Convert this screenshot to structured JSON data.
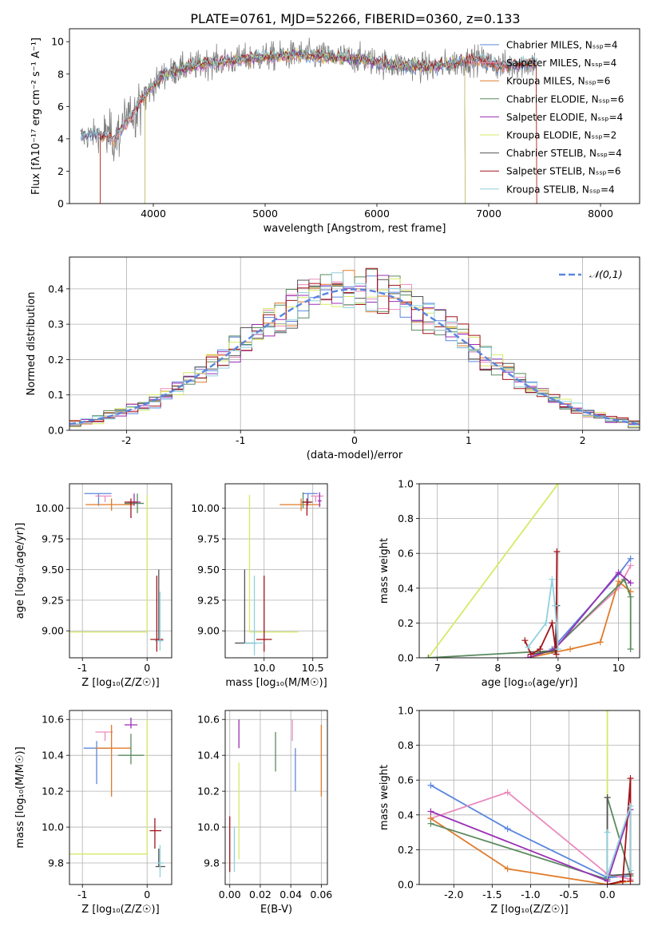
{
  "figure_title": "PLATE=0761, MJD=52266, FIBERID=0360, z=0.133",
  "colors": {
    "chabrier_miles": "#5b86dd",
    "salpeter_miles": "#e98bbd",
    "kroupa_miles": "#e07b2a",
    "chabrier_elodie": "#5a8a5e",
    "salpeter_elodie": "#9a2fb5",
    "kroupa_elodie": "#d6ea66",
    "chabrier_stelib": "#555555",
    "salpeter_stelib": "#a3131b",
    "kroupa_stelib": "#8fd1de",
    "data": "#808080",
    "normal": "#5b86dd"
  },
  "chart_data": [
    {
      "id": "spectrum",
      "type": "line",
      "title": "PLATE=0761, MJD=52266, FIBERID=0360, z=0.133",
      "xlabel": "wavelength [Angstrom, rest frame]",
      "ylabel": "Flux [f$_\\lambda$10$^{-17}$ erg cm$^{-2}$ s$^{-1}$ A$^{-1}$]",
      "xlim": [
        3250,
        8350
      ],
      "ylim": [
        0,
        10.8
      ],
      "xticks": [
        4000,
        5000,
        6000,
        7000,
        8000
      ],
      "yticks": [
        0,
        2,
        4,
        6,
        8,
        10
      ],
      "legend_position": "top-right",
      "grid": false,
      "continuum_x": [
        3350,
        3500,
        3650,
        3800,
        3950,
        4100,
        4300,
        4500,
        4700,
        4900,
        5100,
        5300,
        5500,
        5700,
        5900,
        6100,
        6300,
        6500,
        6700,
        6900,
        7100,
        7300,
        7430
      ],
      "continuum_y": [
        4.1,
        4.3,
        4.0,
        5.4,
        6.9,
        8.0,
        8.4,
        8.7,
        8.8,
        9.0,
        9.1,
        9.2,
        9.1,
        9.0,
        8.9,
        8.6,
        8.5,
        8.4,
        8.7,
        8.9,
        8.5,
        8.6,
        8.7
      ],
      "series": [
        {
          "name": "Chabrier MILES, N$_{SSP}$=4",
          "color_key": "chabrier_miles"
        },
        {
          "name": "Salpeter MILES, N$_{SSP}$=4",
          "color_key": "salpeter_miles"
        },
        {
          "name": "Kroupa MILES, N$_{SSP}$=6",
          "color_key": "kroupa_miles"
        },
        {
          "name": "Chabrier ELODIE, N$_{SSP}$=6",
          "color_key": "chabrier_elodie"
        },
        {
          "name": "Salpeter ELODIE, N$_{SSP}$=4",
          "color_key": "salpeter_elodie"
        },
        {
          "name": "Kroupa ELODIE, N$_{SSP}$=2",
          "color_key": "kroupa_elodie"
        },
        {
          "name": "Chabrier STELIB, N$_{SSP}$=4",
          "color_key": "chabrier_stelib"
        },
        {
          "name": "Salpeter STELIB, N$_{SSP}$=6",
          "color_key": "salpeter_stelib"
        },
        {
          "name": "Kroupa STELIB, N$_{SSP}$=4",
          "color_key": "kroupa_stelib"
        }
      ]
    },
    {
      "id": "residuals",
      "type": "line",
      "xlabel": "(data-model)/error",
      "ylabel": "Normed distribution",
      "xlim": [
        -2.5,
        2.5
      ],
      "ylim": [
        0,
        0.49
      ],
      "xticks": [
        -2,
        -1,
        0,
        1,
        2
      ],
      "yticks": [
        0.0,
        0.1,
        0.2,
        0.3,
        0.4
      ],
      "grid": true,
      "legend_position": "top-right",
      "legend": "$\\mathcal{N}(0,1)$",
      "bin_width": 0.1,
      "bins_start": -2.5
    },
    {
      "id": "age_vs_Z",
      "type": "scatter",
      "xlabel": "Z [log$_{10}$($Z/Z_\\odot$)]",
      "ylabel": "age  [log$_{10}$($age/yr$)]",
      "xlim": [
        -1.2,
        0.38
      ],
      "ylim": [
        8.78,
        10.2
      ],
      "xticks": [
        -1,
        0
      ],
      "yticks": [
        9.0,
        9.25,
        9.5,
        9.75,
        10.0
      ],
      "grid": true,
      "points": [
        {
          "key": "chabrier_miles",
          "x": -0.75,
          "y": 10.12,
          "xerr": [
            0.22,
            0.2
          ],
          "yerr": [
            0.1,
            0.0
          ]
        },
        {
          "key": "salpeter_miles",
          "x": -0.65,
          "y": 10.1,
          "xerr": [
            0.15,
            0.1
          ],
          "yerr": [
            0.05,
            0.0
          ]
        },
        {
          "key": "kroupa_miles",
          "x": -0.55,
          "y": 10.03,
          "xerr": [
            0.4,
            0.35
          ],
          "yerr": [
            0.05,
            0.05
          ]
        },
        {
          "key": "chabrier_elodie",
          "x": -0.15,
          "y": 10.04,
          "xerr": [
            0.2,
            0.1
          ],
          "yerr": [
            0.08,
            0.08
          ]
        },
        {
          "key": "salpeter_elodie",
          "x": -0.2,
          "y": 10.05,
          "xerr": [
            0.1,
            0.1
          ],
          "yerr": [
            0.03,
            0.07
          ]
        },
        {
          "key": "salpeter_stelib",
          "x": -0.25,
          "y": 10.05,
          "xerr": [
            0.1,
            0.1
          ],
          "yerr": [
            0.13,
            0.03
          ]
        },
        {
          "key": "kroupa_elodie",
          "x": 0.0,
          "y": 8.99,
          "xerr": [
            1.25,
            0.0
          ],
          "yerr": [
            0.0,
            1.12
          ]
        },
        {
          "key": "chabrier_stelib",
          "x": 0.18,
          "y": 8.92,
          "xerr": [
            0.05,
            0.05
          ],
          "yerr": [
            0.0,
            0.58
          ]
        },
        {
          "key": "salpeter_stelib",
          "x": 0.15,
          "y": 8.93,
          "xerr": [
            0.1,
            0.1
          ],
          "yerr": [
            0.1,
            0.52
          ]
        },
        {
          "key": "kroupa_stelib",
          "x": 0.2,
          "y": 8.92,
          "xerr": [
            0.05,
            0.05
          ],
          "yerr": [
            0.08,
            0.4
          ]
        }
      ]
    },
    {
      "id": "age_vs_mass",
      "type": "scatter",
      "xlabel": "mass [log$_{10}$($M/M_\\odot$)]",
      "ylabel": "",
      "xlim": [
        9.6,
        10.65
      ],
      "ylim": [
        8.78,
        10.2
      ],
      "xticks": [
        10.0,
        10.5
      ],
      "yticks": [
        9.0,
        9.25,
        9.5,
        9.75,
        10.0
      ],
      "grid": true,
      "points": [
        {
          "key": "chabrier_miles",
          "x": 10.45,
          "y": 10.12,
          "xerr": [
            0.05,
            0.1
          ],
          "yerr": [
            0.1,
            0.0
          ]
        },
        {
          "key": "salpeter_miles",
          "x": 10.53,
          "y": 10.1,
          "xerr": [
            0.05,
            0.08
          ],
          "yerr": [
            0.05,
            0.0
          ]
        },
        {
          "key": "kroupa_miles",
          "x": 10.38,
          "y": 10.03,
          "xerr": [
            0.22,
            0.2
          ],
          "yerr": [
            0.05,
            0.05
          ]
        },
        {
          "key": "chabrier_elodie",
          "x": 10.4,
          "y": 10.05,
          "xerr": [
            0.0,
            0.1
          ],
          "yerr": [
            0.05,
            0.08
          ]
        },
        {
          "key": "salpeter_elodie",
          "x": 10.57,
          "y": 10.06,
          "xerr": [
            0.02,
            0.02
          ],
          "yerr": [
            0.05,
            0.07
          ]
        },
        {
          "key": "salpeter_stelib",
          "x": 10.44,
          "y": 10.05,
          "xerr": [
            0.05,
            0.05
          ],
          "yerr": [
            0.11,
            0.03
          ]
        },
        {
          "key": "kroupa_elodie",
          "x": 9.85,
          "y": 8.99,
          "xerr": [
            0.0,
            0.5
          ],
          "yerr": [
            0.0,
            1.12
          ]
        },
        {
          "key": "chabrier_stelib",
          "x": 9.8,
          "y": 8.9,
          "xerr": [
            0.1,
            0.12
          ],
          "yerr": [
            0.0,
            0.6
          ]
        },
        {
          "key": "salpeter_stelib",
          "x": 10.0,
          "y": 8.93,
          "xerr": [
            0.08,
            0.08
          ],
          "yerr": [
            0.1,
            0.52
          ]
        },
        {
          "key": "kroupa_stelib",
          "x": 9.9,
          "y": 8.9,
          "xerr": [
            0.1,
            0.1
          ],
          "yerr": [
            0.1,
            0.55
          ]
        }
      ]
    },
    {
      "id": "weight_vs_age",
      "type": "line",
      "xlabel": "age  [log$_{10}$($age/yr$)]",
      "ylabel": "mass weight",
      "xlim": [
        6.7,
        10.35
      ],
      "ylim": [
        0,
        1.0
      ],
      "xticks": [
        7,
        8,
        9,
        10
      ],
      "yticks": [
        0.0,
        0.2,
        0.4,
        0.6,
        0.8,
        1.0
      ],
      "grid": true,
      "series": [
        {
          "key": "kroupa_elodie",
          "x": [
            6.85,
            9.0
          ],
          "y": [
            0.0,
            1.0
          ]
        },
        {
          "key": "chabrier_miles",
          "x": [
            8.9,
            10.0,
            10.2
          ],
          "y": [
            0.05,
            0.48,
            0.57
          ]
        },
        {
          "key": "salpeter_miles",
          "x": [
            8.95,
            10.0,
            10.2
          ],
          "y": [
            0.06,
            0.4,
            0.53
          ]
        },
        {
          "key": "kroupa_miles",
          "x": [
            8.5,
            9.2,
            9.7,
            10.0,
            10.2
          ],
          "y": [
            0.0,
            0.05,
            0.09,
            0.44,
            0.38
          ]
        },
        {
          "key": "chabrier_elodie",
          "x": [
            6.85,
            8.9,
            10.1,
            10.2,
            10.2
          ],
          "y": [
            0.0,
            0.04,
            0.45,
            0.35,
            0.05
          ]
        },
        {
          "key": "salpeter_elodie",
          "x": [
            8.5,
            8.95,
            10.0,
            10.2
          ],
          "y": [
            0.0,
            0.05,
            0.49,
            0.43
          ]
        },
        {
          "key": "chabrier_stelib",
          "x": [
            8.55,
            8.95,
            8.98
          ],
          "y": [
            0.02,
            0.04,
            0.3
          ]
        },
        {
          "key": "salpeter_stelib",
          "x": [
            8.45,
            8.55,
            8.7,
            8.9,
            8.97,
            8.98
          ],
          "y": [
            0.1,
            0.02,
            0.05,
            0.2,
            0.02,
            0.61
          ]
        },
        {
          "key": "kroupa_stelib",
          "x": [
            8.5,
            8.8,
            8.9,
            8.95,
            9.0
          ],
          "y": [
            0.06,
            0.2,
            0.45,
            0.3,
            0.05
          ]
        }
      ]
    },
    {
      "id": "mass_vs_Z",
      "type": "scatter",
      "xlabel": "Z [log$_{10}$($Z/Z_\\odot$)]",
      "ylabel": "mass [log$_{10}$($M/M_\\odot$)]",
      "xlim": [
        -1.2,
        0.38
      ],
      "ylim": [
        9.68,
        10.65
      ],
      "xticks": [
        -1,
        0
      ],
      "yticks": [
        9.8,
        10.0,
        10.2,
        10.4,
        10.6
      ],
      "grid": true,
      "points": [
        {
          "key": "chabrier_miles",
          "x": -0.78,
          "y": 10.44,
          "xerr": [
            0.2,
            0.2
          ],
          "yerr": [
            0.2,
            0.04
          ]
        },
        {
          "key": "salpeter_miles",
          "x": -0.65,
          "y": 10.53,
          "xerr": [
            0.15,
            0.12
          ],
          "yerr": [
            0.05,
            0.0
          ]
        },
        {
          "key": "kroupa_miles",
          "x": -0.55,
          "y": 10.44,
          "xerr": [
            0.25,
            0.3
          ],
          "yerr": [
            0.27,
            0.13
          ]
        },
        {
          "key": "chabrier_elodie",
          "x": -0.25,
          "y": 10.4,
          "xerr": [
            0.2,
            0.2
          ],
          "yerr": [
            0.05,
            0.12
          ]
        },
        {
          "key": "salpeter_elodie",
          "x": -0.25,
          "y": 10.57,
          "xerr": [
            0.1,
            0.1
          ],
          "yerr": [
            0.02,
            0.04
          ]
        },
        {
          "key": "kroupa_elodie",
          "x": 0.0,
          "y": 9.85,
          "xerr": [
            1.25,
            0.0
          ],
          "yerr": [
            0.0,
            0.75
          ]
        },
        {
          "key": "chabrier_stelib",
          "x": 0.18,
          "y": 9.78,
          "xerr": [
            0.05,
            0.1
          ],
          "yerr": [
            0.0,
            0.1
          ]
        },
        {
          "key": "salpeter_stelib",
          "x": 0.12,
          "y": 9.98,
          "xerr": [
            0.08,
            0.1
          ],
          "yerr": [
            0.1,
            0.07
          ]
        },
        {
          "key": "kroupa_stelib",
          "x": 0.2,
          "y": 9.8,
          "xerr": [
            0.05,
            0.05
          ],
          "yerr": [
            0.08,
            0.1
          ]
        }
      ]
    },
    {
      "id": "mass_vs_EBV",
      "type": "scatter",
      "xlabel": "E(B-V)",
      "ylabel": "",
      "xlim": [
        -0.003,
        0.064
      ],
      "ylim": [
        9.68,
        10.65
      ],
      "xticks": [
        0.0,
        0.02,
        0.04,
        0.06
      ],
      "xtick_labels": [
        "0.00",
        "0.02",
        "0.04",
        "0.06"
      ],
      "yticks": [
        9.8,
        10.0,
        10.2,
        10.4,
        10.6
      ],
      "grid": true,
      "vlines": [
        {
          "key": "salpeter_stelib",
          "x": 0.0,
          "y0": 9.75,
          "y1": 10.06
        },
        {
          "key": "kroupa_stelib",
          "x": 0.003,
          "y0": 9.75,
          "y1": 10.0
        },
        {
          "key": "kroupa_elodie",
          "x": 0.006,
          "y0": 9.82,
          "y1": 10.36
        },
        {
          "key": "salpeter_elodie",
          "x": 0.006,
          "y0": 10.44,
          "y1": 10.6
        },
        {
          "key": "chabrier_elodie",
          "x": 0.03,
          "y0": 10.31,
          "y1": 10.53
        },
        {
          "key": "salpeter_miles",
          "x": 0.041,
          "y0": 10.48,
          "y1": 10.6
        },
        {
          "key": "chabrier_miles",
          "x": 0.043,
          "y0": 10.2,
          "y1": 10.44
        },
        {
          "key": "kroupa_miles",
          "x": 0.06,
          "y0": 10.17,
          "y1": 10.57
        }
      ]
    },
    {
      "id": "weight_vs_Z",
      "type": "line",
      "xlabel": "Z [log$_{10}$($Z/Z_\\odot$)]",
      "ylabel": "mass weight",
      "xlim": [
        -2.45,
        0.42
      ],
      "ylim": [
        0,
        1.0
      ],
      "xticks": [
        -2.0,
        -1.5,
        -1.0,
        -0.5,
        0.0
      ],
      "yticks": [
        0.0,
        0.2,
        0.4,
        0.6,
        0.8,
        1.0
      ],
      "grid": true,
      "series": [
        {
          "key": "kroupa_elodie",
          "x": [
            0.0,
            0.0
          ],
          "y": [
            0.0,
            1.0
          ]
        },
        {
          "key": "chabrier_miles",
          "x": [
            -2.3,
            -1.3,
            0.0,
            0.3
          ],
          "y": [
            0.57,
            0.32,
            0.04,
            0.05
          ]
        },
        {
          "key": "salpeter_miles",
          "x": [
            -2.3,
            -1.3,
            0.0,
            0.3
          ],
          "y": [
            0.38,
            0.53,
            0.06,
            0.03
          ]
        },
        {
          "key": "kroupa_miles",
          "x": [
            -2.3,
            -1.3,
            0.0,
            0.3
          ],
          "y": [
            0.38,
            0.09,
            0.0,
            0.02
          ]
        },
        {
          "key": "chabrier_elodie",
          "x": [
            -2.3,
            0.0,
            0.0,
            0.3
          ],
          "y": [
            0.35,
            0.03,
            0.5,
            0.05
          ]
        },
        {
          "key": "salpeter_elodie",
          "x": [
            -2.3,
            0.0,
            0.3,
            0.3
          ],
          "y": [
            0.42,
            0.02,
            0.43,
            0.06
          ]
        },
        {
          "key": "chabrier_stelib",
          "x": [
            0.0,
            0.0,
            0.3
          ],
          "y": [
            0.5,
            0.05,
            0.06
          ]
        },
        {
          "key": "salpeter_stelib",
          "x": [
            0.0,
            0.2,
            0.3,
            0.3
          ],
          "y": [
            0.0,
            0.02,
            0.61,
            0.02
          ]
        },
        {
          "key": "kroupa_stelib",
          "x": [
            0.0,
            0.0,
            0.3,
            0.3
          ],
          "y": [
            0.3,
            0.05,
            0.45,
            0.08
          ]
        }
      ]
    }
  ]
}
